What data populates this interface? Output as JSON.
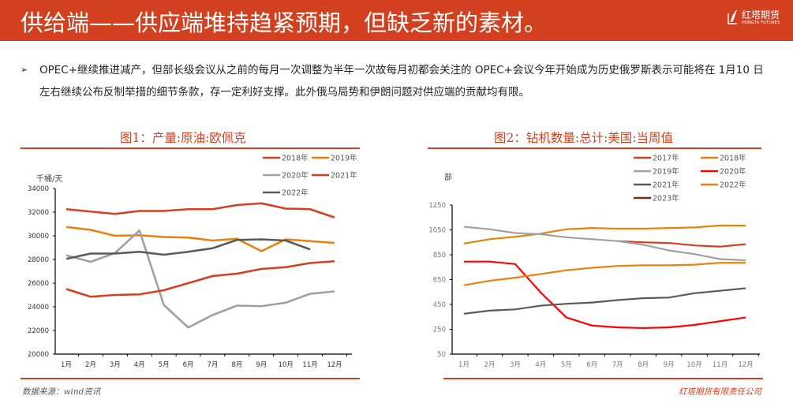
{
  "header": {
    "title": "供给端——供应端堆持趋紧预期，但缺乏新的素材。",
    "logo_cn": "红塔期货",
    "logo_en": "HONGTA FUTURES",
    "background": "#d2401f"
  },
  "bullet": {
    "marker": "➢",
    "text": "OPEC+继续推进减产，但部长级会议从之前的每月一次调整为半年一次故每月初都会关注的 OPEC+会议今年开始成为历史俄罗斯表示可能将在 1月10 日左右继续公布反制举措的细节条款，存一定利好支撑。此外俄乌局势和伊朗问题对供应端的贡献均有限。"
  },
  "footer": {
    "source": "数据来源：wind资讯",
    "company": "红塔期货有限责任公司"
  },
  "chart_data": [
    {
      "type": "line",
      "title": "图1：产量:原油:欧佩克",
      "ylabel": "千桶/天",
      "xlabel": "",
      "ylim": [
        20000,
        34000
      ],
      "yticks": [
        20000,
        22000,
        24000,
        26000,
        28000,
        30000,
        32000,
        34000
      ],
      "categories": [
        "1月",
        "2月",
        "3月",
        "4月",
        "5月",
        "6月",
        "7月",
        "8月",
        "9月",
        "10月",
        "11月",
        "12月"
      ],
      "legend_position": "top-right",
      "series": [
        {
          "name": "2018年",
          "color": "#d2401f",
          "values": [
            32250,
            32050,
            31850,
            32100,
            32100,
            32250,
            32250,
            32600,
            32750,
            32300,
            32250,
            31550
          ]
        },
        {
          "name": "2019年",
          "color": "#e8800c",
          "values": [
            30750,
            30500,
            30000,
            30050,
            29900,
            29850,
            29600,
            29750,
            28700,
            29700,
            29550,
            29400
          ]
        },
        {
          "name": "2020年",
          "color": "#a0a0a0",
          "values": [
            28350,
            27800,
            28550,
            30450,
            24150,
            22250,
            23300,
            24100,
            24050,
            24350,
            25100,
            25300
          ]
        },
        {
          "name": "2021年",
          "color": "#d2401f",
          "values": [
            25500,
            24850,
            25000,
            25050,
            25400,
            26000,
            26600,
            26800,
            27200,
            27350,
            27700,
            27850
          ]
        },
        {
          "name": "2022年",
          "color": "#5a5a5a",
          "values": [
            28050,
            28500,
            28500,
            28650,
            28400,
            28650,
            28950,
            29650,
            29700,
            29600,
            28850,
            null
          ]
        }
      ]
    },
    {
      "type": "line",
      "title": "图2：钻机数量:总计:美国:当周值",
      "ylabel": "部",
      "xlabel": "",
      "ylim": [
        50,
        1250
      ],
      "yticks": [
        50,
        250,
        450,
        650,
        850,
        1050,
        1250
      ],
      "categories": [
        "1月",
        "2月",
        "3月",
        "4月",
        "5月",
        "6月",
        "7月",
        "8月",
        "9月",
        "10月",
        "11月",
        "12月"
      ],
      "legend_position": "top-right",
      "series": [
        {
          "name": "2017年",
          "color": "#d2401f",
          "values": [
            null,
            null,
            null,
            null,
            null,
            null,
            960,
            950,
            945,
            925,
            915,
            935
          ]
        },
        {
          "name": "2018年",
          "color": "#e8800c",
          "values": [
            940,
            975,
            995,
            1020,
            1055,
            1065,
            1060,
            1060,
            1065,
            1070,
            1085,
            1085
          ]
        },
        {
          "name": "2019年",
          "color": "#a0a0a0",
          "values": [
            1075,
            1055,
            1025,
            1015,
            990,
            975,
            960,
            930,
            885,
            855,
            815,
            805
          ]
        },
        {
          "name": "2020年",
          "color": "#ff0000",
          "values": [
            795,
            795,
            775,
            545,
            345,
            280,
            265,
            260,
            265,
            285,
            315,
            345
          ]
        },
        {
          "name": "2021年",
          "color": "#5a5a5a",
          "values": [
            375,
            400,
            410,
            440,
            455,
            465,
            485,
            500,
            505,
            540,
            560,
            580
          ]
        },
        {
          "name": "2022年",
          "color": "#e8800c",
          "values": [
            605,
            640,
            665,
            695,
            725,
            745,
            760,
            765,
            765,
            770,
            785,
            785
          ]
        },
        {
          "name": "2023年",
          "color": "#7b2a14",
          "values": [
            null,
            null,
            null,
            null,
            null,
            null,
            null,
            null,
            null,
            null,
            null,
            null
          ]
        }
      ]
    }
  ]
}
